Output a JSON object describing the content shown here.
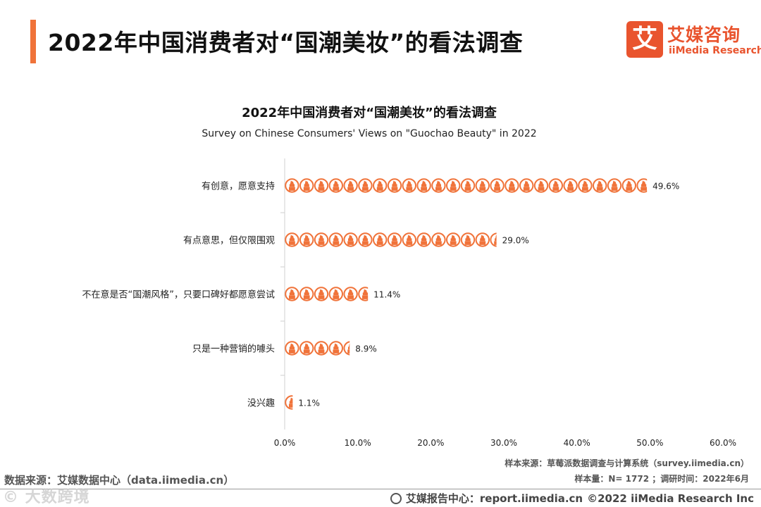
{
  "header": {
    "title": "2022年中国消费者对“国潮美妆”的看法调查",
    "accent_color": "#F0733A"
  },
  "logo": {
    "badge_char": "艾",
    "name_cn": "艾媒咨询",
    "name_en": "iiMedia Research",
    "color": "#E9542E"
  },
  "chart_data": {
    "type": "bar",
    "orientation": "horizontal",
    "title": "2022年中国消费者对“国潮美妆”的看法调查",
    "subtitle": "Survey on Chinese Consumers' Views on \"Guochao Beauty\" in 2022",
    "categories": [
      "有创意，愿意支持",
      "有点意思，但仅限围观",
      "不在意是否“国潮风格”，只要口碑好都愿意尝试",
      "只是一种营销的噱头",
      "没兴趣"
    ],
    "values": [
      49.6,
      29.0,
      11.4,
      8.9,
      1.1
    ],
    "data_labels": [
      "49.6%",
      "29.0%",
      "11.4%",
      "8.9%",
      "1.1%"
    ],
    "unit": "%",
    "xlim": [
      0,
      60
    ],
    "xticks": [
      0,
      10,
      20,
      30,
      40,
      50,
      60
    ],
    "xtick_labels": [
      "0.0%",
      "10.0%",
      "20.0%",
      "30.0%",
      "40.0%",
      "50.0%",
      "60.0%"
    ],
    "xlabel": "",
    "ylabel": "",
    "grid": false,
    "marker_color": "#F0733A",
    "marker_icon": "lipstick-pictogram-icon"
  },
  "notes": {
    "sample_source": "样本来源：草莓派数据调查与计算系统（survey.iimedia.cn）",
    "sample_size": "样本量：N= 1772 ；调研时间：2022年6月"
  },
  "footer": {
    "data_source": "数据来源：艾媒数据中心（data.iimedia.cn）",
    "report_center": "艾媒报告中心：report.iimedia.cn",
    "copyright": "©2022  iiMedia Research  Inc",
    "watermark": "© 大数跨境"
  }
}
